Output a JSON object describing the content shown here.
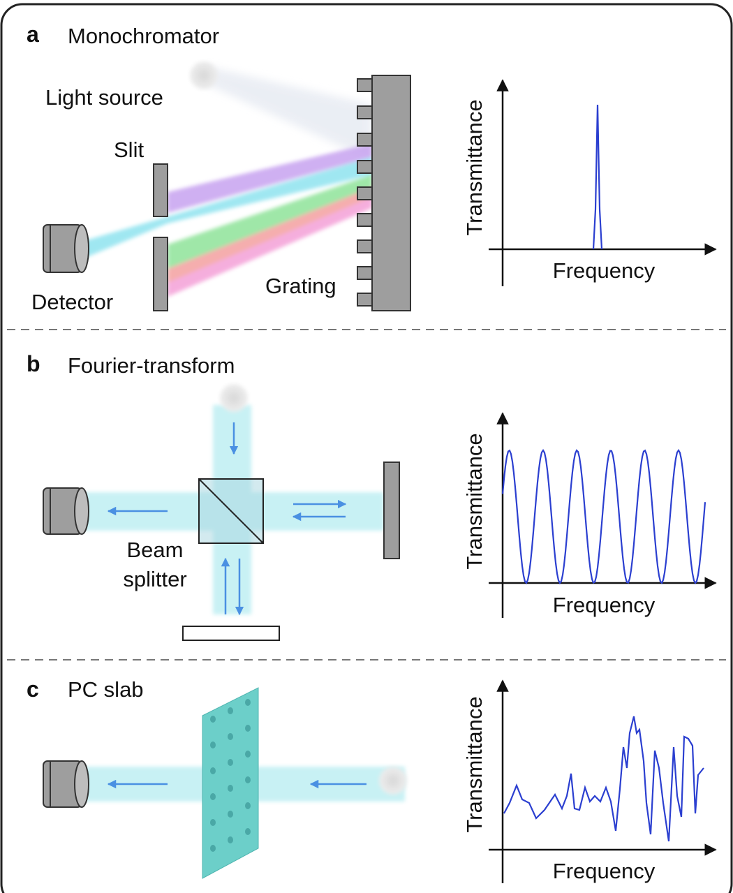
{
  "panels": [
    {
      "letter": "a",
      "title": "Monochromator",
      "light_source": "Light source",
      "slit": "Slit",
      "detector": "Detector",
      "grating": "Grating",
      "plot": {
        "y_label": "Transmittance",
        "x_label": "Frequency"
      }
    },
    {
      "letter": "b",
      "title": "Fourier-transform",
      "beam_splitter": [
        "Beam",
        "splitter"
      ],
      "plot": {
        "y_label": "Transmittance",
        "x_label": "Frequency"
      }
    },
    {
      "letter": "c",
      "title": "PC slab",
      "plot": {
        "y_label": "Transmittance",
        "x_label": "Frequency"
      }
    }
  ]
}
